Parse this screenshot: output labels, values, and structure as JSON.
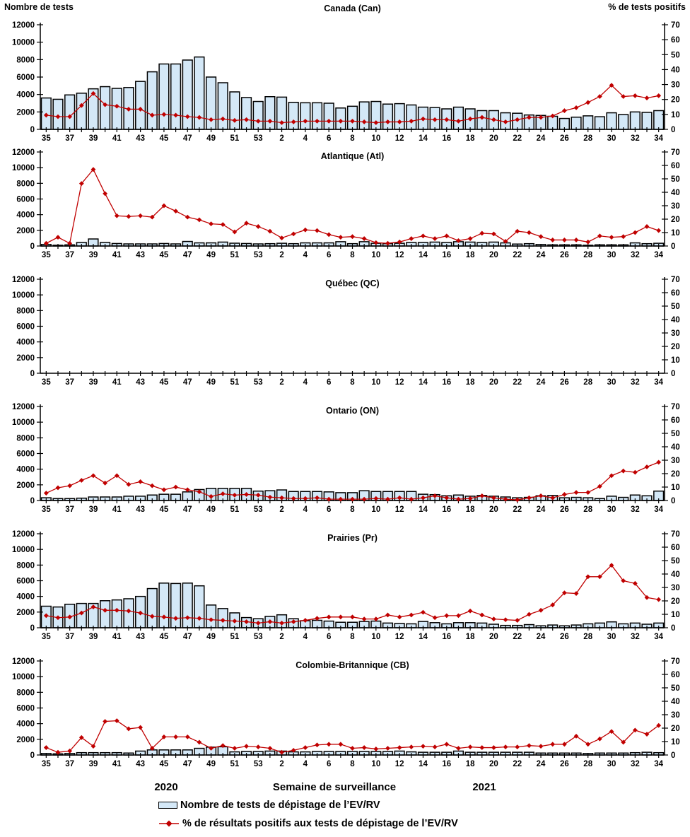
{
  "header": {
    "left_axis_title": "Nombre de tests",
    "right_axis_title": "% de tests positifs"
  },
  "footer": {
    "year_left": "2020",
    "x_axis_title": "Semaine de surveillance",
    "year_right": "2021",
    "legend": [
      {
        "type": "bar",
        "label": "Nombre de tests de dépistage de l’EV/RV"
      },
      {
        "type": "line",
        "label": "% de résultats positifs aux tests de dépistage de l’EV/RV"
      }
    ]
  },
  "colors": {
    "bar_fill": "#D4E8F7",
    "bar_stroke": "#000000",
    "line": "#C00000",
    "axis": "#000000"
  },
  "axes": {
    "y_left": {
      "min": 0,
      "max": 12000,
      "ticks": [
        0,
        2000,
        4000,
        6000,
        8000,
        10000,
        12000
      ]
    },
    "y_right": {
      "min": 0,
      "max": 70,
      "ticks": [
        0,
        10,
        20,
        30,
        40,
        50,
        60,
        70
      ]
    },
    "week_numbers": [
      35,
      36,
      37,
      38,
      39,
      40,
      41,
      42,
      43,
      44,
      45,
      46,
      47,
      48,
      49,
      50,
      51,
      52,
      53,
      1,
      2,
      3,
      4,
      5,
      6,
      7,
      8,
      9,
      10,
      11,
      12,
      13,
      14,
      15,
      16,
      17,
      18,
      19,
      20,
      21,
      22,
      23,
      24,
      25,
      26,
      27,
      28,
      29,
      30,
      31,
      32,
      33,
      34
    ],
    "week_tick_labels": [
      "35",
      null,
      "37",
      null,
      "39",
      null,
      "41",
      null,
      "43",
      null,
      "45",
      null,
      "47",
      null,
      "49",
      null,
      "51",
      null,
      "53",
      null,
      "2",
      null,
      "4",
      null,
      "6",
      null,
      "8",
      null,
      "10",
      null,
      "12",
      null,
      "14",
      null,
      "16",
      null,
      "18",
      null,
      "20",
      null,
      "22",
      null,
      "24",
      null,
      "26",
      null,
      "28",
      null,
      "30",
      null,
      "32",
      null,
      "34"
    ]
  },
  "chart_data": [
    {
      "type": "bar+line",
      "id": "canada",
      "title": "Canada (Can)",
      "bars": [
        3600,
        3450,
        3950,
        4150,
        4650,
        4900,
        4700,
        4800,
        5500,
        6600,
        7500,
        7500,
        7950,
        8300,
        6000,
        5350,
        4300,
        3650,
        3200,
        3750,
        3700,
        3100,
        3050,
        3050,
        3000,
        2450,
        2650,
        3150,
        3200,
        2900,
        2950,
        2800,
        2550,
        2500,
        2350,
        2550,
        2350,
        2150,
        2150,
        1900,
        1850,
        1650,
        1600,
        1500,
        1250,
        1400,
        1550,
        1450,
        1900,
        1700,
        2000,
        1950,
        2150
      ],
      "pct": [
        9.5,
        8.5,
        8.5,
        16,
        24,
        16.5,
        15.5,
        13.5,
        13.5,
        9.5,
        10,
        9.5,
        8.5,
        8,
        6.5,
        7,
        6,
        6.5,
        5.5,
        5.5,
        4.5,
        5,
        5.5,
        5.5,
        5.5,
        5.5,
        5.5,
        5,
        4.5,
        5,
        5,
        5.5,
        7,
        6.5,
        6.5,
        5.5,
        7,
        8,
        6.5,
        5,
        6.5,
        8,
        8,
        9,
        12.5,
        14.5,
        18,
        22,
        29.5,
        22,
        22.5,
        21,
        22.5
      ]
    },
    {
      "type": "bar+line",
      "id": "atlantique",
      "title": "Atlantique (Atl)",
      "bars": [
        200,
        100,
        150,
        450,
        900,
        450,
        320,
        270,
        270,
        270,
        320,
        270,
        580,
        400,
        400,
        500,
        360,
        320,
        270,
        300,
        350,
        300,
        400,
        400,
        400,
        550,
        300,
        550,
        350,
        300,
        350,
        450,
        450,
        500,
        450,
        550,
        500,
        450,
        500,
        400,
        250,
        300,
        200,
        150,
        150,
        150,
        100,
        150,
        150,
        150,
        400,
        300,
        350
      ],
      "pct": [
        2,
        6.5,
        2,
        46.5,
        57,
        39,
        22.5,
        22,
        22.5,
        21.5,
        30,
        26,
        21.5,
        19.5,
        16.5,
        16,
        10.5,
        17,
        14.5,
        11,
        6,
        9,
        12,
        11.5,
        8.5,
        6.5,
        7,
        5.5,
        2.5,
        2,
        3,
        5.5,
        7.5,
        5.5,
        7.5,
        4,
        5.5,
        9.5,
        9,
        3.5,
        11,
        10,
        7,
        4.5,
        4.5,
        4.5,
        3,
        7.5,
        6.5,
        7,
        10,
        14.5,
        11.5
      ]
    },
    {
      "type": "bar+line",
      "id": "quebec",
      "title": "Québec (QC)",
      "bars": [],
      "pct": []
    },
    {
      "type": "bar+line",
      "id": "ontario",
      "title": "Ontario (ON)",
      "bars": [
        350,
        250,
        250,
        300,
        450,
        450,
        450,
        550,
        550,
        700,
        800,
        800,
        1100,
        1400,
        1550,
        1550,
        1550,
        1550,
        1200,
        1250,
        1350,
        1150,
        1150,
        1150,
        1100,
        1000,
        1000,
        1250,
        1150,
        1150,
        1150,
        1150,
        800,
        750,
        600,
        700,
        550,
        650,
        550,
        450,
        350,
        400,
        600,
        650,
        350,
        400,
        350,
        250,
        550,
        400,
        700,
        600,
        1200
      ],
      "pct": [
        5.5,
        9.5,
        11,
        15,
        18.5,
        13,
        18.5,
        12,
        14,
        11,
        8,
        10,
        8,
        6.5,
        3,
        5,
        4,
        4.5,
        4,
        2.5,
        2,
        1.5,
        1.5,
        2,
        1,
        1,
        1,
        1,
        1.5,
        1,
        2,
        1,
        2,
        3.5,
        2,
        1,
        1.5,
        3.5,
        2,
        1,
        0.5,
        2,
        3.5,
        2,
        4.5,
        6,
        6,
        10.5,
        18.5,
        22,
        21,
        25,
        28.5
      ]
    },
    {
      "type": "bar+line",
      "id": "prairies",
      "title": "Prairies (Pr)",
      "bars": [
        2750,
        2650,
        3000,
        3100,
        3100,
        3450,
        3550,
        3700,
        4000,
        5000,
        5700,
        5650,
        5700,
        5350,
        2900,
        2450,
        1900,
        1300,
        1150,
        1450,
        1650,
        1150,
        900,
        950,
        850,
        700,
        700,
        800,
        850,
        600,
        550,
        500,
        800,
        650,
        500,
        650,
        650,
        600,
        450,
        300,
        300,
        400,
        250,
        350,
        250,
        350,
        500,
        600,
        750,
        500,
        600,
        450,
        600
      ],
      "pct": [
        9,
        7.5,
        8,
        11,
        15.5,
        13,
        13,
        12.5,
        11,
        8.5,
        8,
        7,
        7.5,
        7,
        6,
        5.5,
        5,
        4.5,
        3.5,
        4.5,
        3.5,
        4.5,
        5.5,
        7,
        8,
        8,
        8,
        6.5,
        6.5,
        9.5,
        8,
        9.5,
        11.5,
        7.5,
        9,
        9,
        12.5,
        9.5,
        6.5,
        6,
        5.5,
        10,
        13,
        17,
        26,
        25.5,
        38,
        38,
        46.5,
        35,
        33,
        22.5,
        21
      ]
    },
    {
      "type": "bar+line",
      "id": "colombie-britannique",
      "title": "Colombie-Britannique (CB)",
      "bars": [
        200,
        150,
        200,
        300,
        300,
        300,
        300,
        250,
        500,
        650,
        650,
        650,
        650,
        850,
        1000,
        1050,
        400,
        450,
        450,
        500,
        500,
        400,
        400,
        450,
        450,
        450,
        450,
        450,
        450,
        450,
        500,
        400,
        350,
        350,
        350,
        500,
        350,
        350,
        350,
        350,
        350,
        350,
        250,
        250,
        250,
        250,
        200,
        250,
        250,
        250,
        300,
        350,
        300
      ],
      "pct": [
        5.5,
        2,
        3,
        13,
        6.5,
        25,
        25.5,
        19.5,
        20.5,
        5,
        13.5,
        13.5,
        13.5,
        9.5,
        5,
        7,
        5,
        6.5,
        6,
        5,
        2,
        3.5,
        5.5,
        7.5,
        8,
        8,
        5,
        5.5,
        4.5,
        5,
        5.5,
        6,
        6.5,
        6,
        8,
        5,
        6,
        5.5,
        5.5,
        6,
        6,
        7,
        6.5,
        8,
        8,
        14,
        8,
        12,
        17.5,
        9.5,
        18.5,
        15.5,
        22
      ]
    }
  ]
}
